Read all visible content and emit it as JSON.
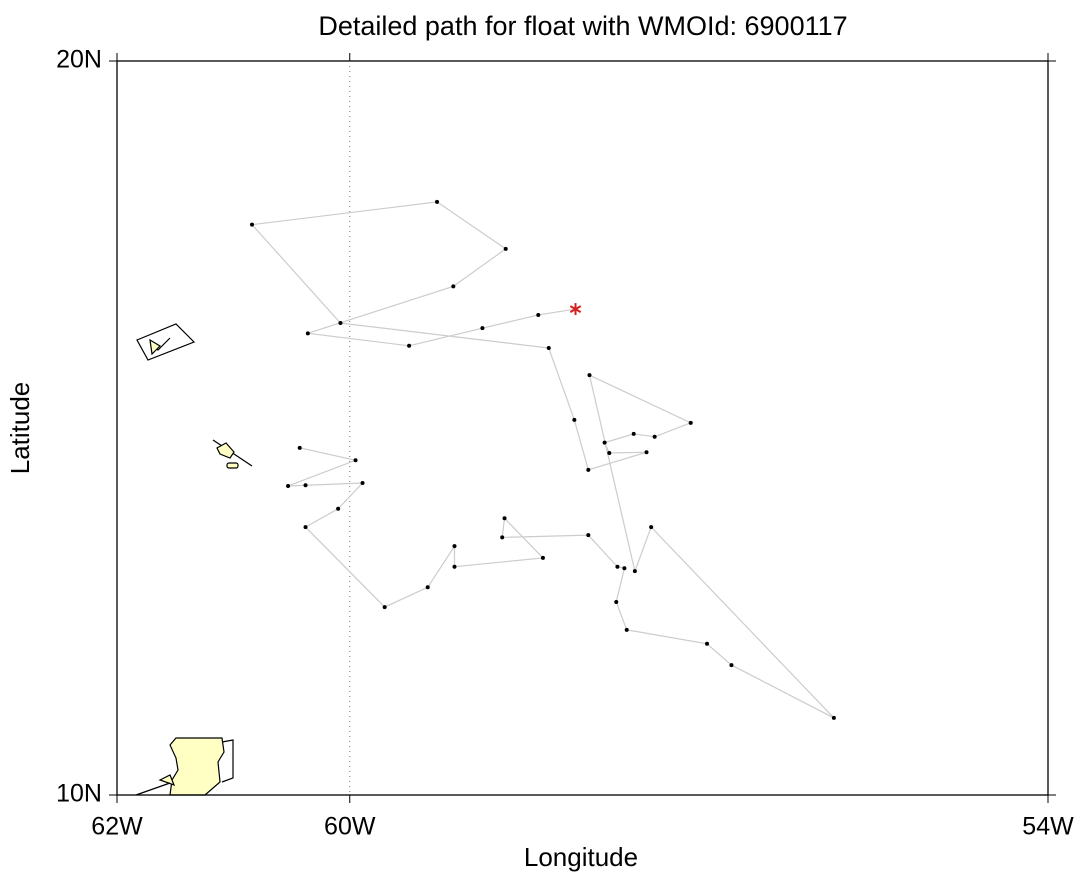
{
  "chart_data": {
    "type": "line",
    "title": "Detailed path for float with WMOId: 6900117",
    "xlabel": "Longitude",
    "ylabel": "Latitude",
    "xlim": [
      -62,
      -54
    ],
    "ylim": [
      10,
      20
    ],
    "xticks": [
      {
        "value": -62,
        "label": "62W"
      },
      {
        "value": -60,
        "label": "60W"
      },
      {
        "value": -54,
        "label": "54W"
      }
    ],
    "yticks": [
      {
        "value": 10,
        "label": "10N"
      },
      {
        "value": 20,
        "label": "20N"
      }
    ],
    "grid": true,
    "color": "#cccccc",
    "marker_color": "#000000",
    "end_marker_color": "#d42020",
    "x": [
      -60.43,
      -59.95,
      -60.53,
      -60.38,
      -59.89,
      -60.1,
      -60.38,
      -59.7,
      -59.33,
      -59.1,
      -59.1,
      -58.34,
      -58.67,
      -58.69,
      -57.95,
      -57.7,
      -57.64,
      -57.71,
      -57.62,
      -56.93,
      -56.72,
      -55.84,
      -57.41,
      -57.55,
      -57.94,
      -57.07,
      -57.38,
      -57.56,
      -57.81,
      -57.77,
      -57.45,
      -57.95,
      -58.07,
      -58.29,
      -60.08,
      -60.84,
      -59.25,
      -58.66,
      -59.11,
      -60.36,
      -59.49,
      -58.86,
      -58.38,
      -58.06
    ],
    "y": [
      14.73,
      14.56,
      14.21,
      14.22,
      14.25,
      13.9,
      13.65,
      12.56,
      12.83,
      13.39,
      13.11,
      13.23,
      13.77,
      13.51,
      13.54,
      13.11,
      13.09,
      12.63,
      12.25,
      12.06,
      11.77,
      11.05,
      13.65,
      13.05,
      15.72,
      15.07,
      14.88,
      14.92,
      14.8,
      14.66,
      14.67,
      14.43,
      15.11,
      16.09,
      16.43,
      17.77,
      18.08,
      17.44,
      16.93,
      16.29,
      16.12,
      16.36,
      16.54,
      16.62
    ]
  }
}
